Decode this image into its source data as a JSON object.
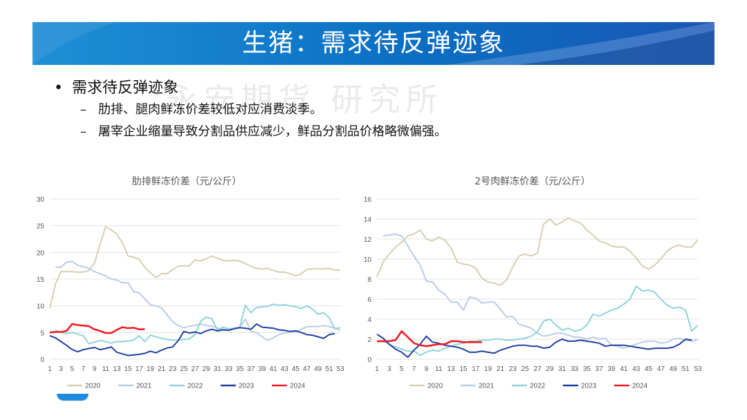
{
  "banner": {
    "title": "生猪：需求待反弹迹象",
    "color": "#0b6fc4"
  },
  "watermark": "永安期货 研究所",
  "bullets": {
    "main": "需求待反弹迹象",
    "subs": [
      "肋排、腿肉鲜冻价差较低对应消费淡季。",
      "屠宰企业缩量导致分割品供应减少，鲜品分割品价格略微偏强。"
    ]
  },
  "chart_data": [
    {
      "type": "line",
      "title": "肋排鲜冻价差（元/公斤）",
      "x": [
        1,
        2,
        3,
        4,
        5,
        6,
        7,
        8,
        9,
        10,
        11,
        12,
        13,
        14,
        15,
        16,
        17,
        18,
        19,
        20,
        21,
        22,
        23,
        24,
        25,
        26,
        27,
        28,
        29,
        30,
        31,
        32,
        33,
        34,
        35,
        36,
        37,
        38,
        39,
        40,
        41,
        42,
        43,
        44,
        45,
        46,
        47,
        48,
        49,
        50,
        51,
        52,
        53
      ],
      "x_tick_labels": [
        "1",
        "3",
        "5",
        "7",
        "9",
        "11",
        "13",
        "15",
        "17",
        "19",
        "21",
        "23",
        "25",
        "27",
        "29",
        "31",
        "33",
        "35",
        "37",
        "39",
        "41",
        "43",
        "45",
        "47",
        "49",
        "51",
        "53"
      ],
      "ylim": [
        0,
        30
      ],
      "y_ticks": [
        0,
        5,
        10,
        15,
        20,
        25,
        30
      ],
      "legend_position": "bottom",
      "series": [
        {
          "name": "2020",
          "color": "#d6cfb2",
          "values": [
            9.5,
            14,
            16.4,
            16.4,
            16.4,
            16.3,
            16.3,
            16.6,
            18,
            21.5,
            24.8,
            24.2,
            23.4,
            21.8,
            19.3,
            19.1,
            18.7,
            17.2,
            16.2,
            15.3,
            16.0,
            16.0,
            16.8,
            17.4,
            17.5,
            17.5,
            18.6,
            18.4,
            18.8,
            19.3,
            18.9,
            18.5,
            18.4,
            18.5,
            18.4,
            17.9,
            17.4,
            17.0,
            16.9,
            17.0,
            16.6,
            16.3,
            16.3,
            16.0,
            15.6,
            16.0,
            16.8,
            16.9,
            16.9,
            16.9,
            17.0,
            16.7,
            16.7
          ]
        },
        {
          "name": "2021",
          "color": "#b9cde6",
          "values": [
            null,
            17.3,
            17.2,
            18.2,
            18.3,
            17.6,
            17.3,
            17.0,
            16.4,
            16.0,
            15.6,
            15.0,
            14.8,
            14.3,
            14.3,
            12.7,
            12.4,
            11.3,
            10.2,
            10.0,
            9.6,
            8.3,
            7.0,
            6.3,
            5.9,
            6.2,
            6.3,
            6.6,
            6.3,
            6.2,
            5.8,
            5.6,
            5.5,
            5.8,
            6.0,
            7.5,
            5.2,
            5.0,
            4.2,
            3.5,
            4.0,
            4.6,
            4.9,
            5.1,
            5.2,
            5.6,
            6.1,
            6.1,
            6.1,
            6.3,
            6.1,
            5.8,
            5.4
          ]
        },
        {
          "name": "2022",
          "color": "#8fd4dc",
          "values": [
            null,
            5.4,
            5.0,
            4.8,
            5.0,
            4.7,
            4.4,
            2.9,
            3.2,
            3.5,
            3.3,
            3.0,
            3.3,
            3.3,
            3.4,
            3.6,
            4.4,
            3.3,
            4.5,
            4.2,
            3.9,
            3.7,
            3.6,
            3.6,
            3.7,
            3.8,
            4.6,
            7.1,
            7.9,
            7.6,
            5.5,
            6.0,
            5.7,
            5.8,
            6.0,
            10.1,
            8.7,
            9.7,
            9.8,
            9.9,
            10.3,
            10.1,
            10.2,
            10.0,
            9.8,
            9.5,
            10.0,
            9.4,
            8.4,
            8.7,
            7.8,
            5.7,
            5.9
          ]
        },
        {
          "name": "2023",
          "color": "#1f3fa3",
          "values": [
            4.4,
            4.0,
            3.3,
            2.6,
            1.8,
            1.4,
            1.8,
            2.0,
            2.2,
            1.8,
            2.0,
            2.3,
            1.3,
            1.0,
            0.7,
            0.8,
            0.9,
            1.1,
            1.5,
            1.2,
            1.7,
            2.1,
            2.3,
            3.5,
            5.2,
            4.9,
            5.1,
            4.8,
            5.3,
            5.6,
            5.3,
            5.5,
            5.4,
            5.7,
            5.9,
            5.8,
            5.6,
            6.6,
            6.0,
            5.9,
            5.8,
            5.5,
            5.4,
            5.2,
            5.3,
            5.0,
            4.6,
            4.5,
            4.2,
            3.9,
            4.6,
            4.8,
            null
          ]
        },
        {
          "name": "2024",
          "color": "#ee1c25",
          "values": [
            5.0,
            5.1,
            5.1,
            5.3,
            6.6,
            6.4,
            6.3,
            6.2,
            5.6,
            5.3,
            4.9,
            4.9,
            5.5,
            6.0,
            5.8,
            5.9,
            5.6,
            5.6,
            null,
            null,
            null,
            null,
            null,
            null,
            null,
            null,
            null,
            null,
            null,
            null,
            null,
            null,
            null,
            null,
            null,
            null,
            null,
            null,
            null,
            null,
            null,
            null,
            null,
            null,
            null,
            null,
            null,
            null,
            null,
            null,
            null,
            null,
            null
          ]
        }
      ]
    },
    {
      "type": "line",
      "title": "2号肉鲜冻价差（元/公斤）",
      "x": [
        1,
        2,
        3,
        4,
        5,
        6,
        7,
        8,
        9,
        10,
        11,
        12,
        13,
        14,
        15,
        16,
        17,
        18,
        19,
        20,
        21,
        22,
        23,
        24,
        25,
        26,
        27,
        28,
        29,
        30,
        31,
        32,
        33,
        34,
        35,
        36,
        37,
        38,
        39,
        40,
        41,
        42,
        43,
        44,
        45,
        46,
        47,
        48,
        49,
        50,
        51,
        52,
        53
      ],
      "x_tick_labels": [
        "1",
        "3",
        "5",
        "7",
        "9",
        "11",
        "13",
        "15",
        "17",
        "19",
        "21",
        "23",
        "25",
        "27",
        "29",
        "31",
        "33",
        "35",
        "37",
        "39",
        "41",
        "43",
        "45",
        "47",
        "49",
        "51",
        "53"
      ],
      "ylim": [
        0,
        16
      ],
      "y_ticks": [
        0,
        2,
        4,
        6,
        8,
        10,
        12,
        14,
        16
      ],
      "legend_position": "bottom",
      "series": [
        {
          "name": "2020",
          "color": "#d6cfb2",
          "values": [
            8.2,
            9.7,
            10.5,
            11.2,
            11.7,
            12.3,
            12.5,
            12.9,
            12.0,
            11.8,
            12.2,
            11.9,
            11.1,
            9.7,
            9.5,
            9.4,
            9.1,
            8.1,
            7.7,
            7.6,
            7.4,
            7.9,
            9.2,
            10.3,
            10.5,
            10.3,
            10.6,
            13.5,
            14.0,
            13.4,
            13.7,
            14.1,
            13.8,
            13.6,
            12.9,
            12.4,
            11.8,
            11.6,
            11.3,
            11.2,
            11.2,
            10.8,
            10.1,
            9.3,
            9.0,
            9.4,
            10.0,
            10.8,
            11.2,
            11.4,
            11.2,
            11.2,
            11.9
          ]
        },
        {
          "name": "2021",
          "color": "#b9cde6",
          "values": [
            null,
            12.3,
            12.4,
            12.5,
            12.3,
            11.3,
            10.3,
            9.4,
            7.8,
            7.7,
            6.9,
            6.5,
            5.7,
            5.7,
            4.9,
            6.2,
            6.1,
            5.6,
            5.7,
            5.7,
            5.0,
            4.2,
            4.3,
            3.5,
            3.3,
            3.1,
            2.6,
            2.3,
            2.4,
            2.6,
            2.6,
            2.4,
            2.2,
            2.2,
            2.0,
            2.2,
            2.0,
            2.1,
            1.4,
            1.3,
            1.1,
            1.3,
            1.5,
            1.7,
            1.8,
            1.8,
            1.6,
            1.7,
            2.0,
            2.1,
            1.9,
            1.8,
            2.0
          ]
        },
        {
          "name": "2022",
          "color": "#8fd4dc",
          "values": [
            null,
            1.8,
            1.5,
            1.2,
            1.0,
            0.8,
            0.8,
            0.4,
            0.7,
            0.9,
            0.8,
            1.1,
            1.3,
            1.5,
            1.6,
            1.8,
            1.8,
            1.9,
            1.9,
            2.0,
            2.0,
            1.9,
            1.9,
            2.0,
            2.1,
            2.3,
            2.7,
            3.8,
            4.0,
            3.4,
            2.9,
            3.1,
            2.8,
            2.9,
            3.4,
            4.5,
            4.3,
            4.6,
            4.9,
            5.1,
            5.5,
            6.0,
            7.3,
            6.8,
            6.9,
            6.7,
            6.0,
            5.4,
            5.1,
            5.2,
            4.9,
            2.8,
            3.4
          ]
        },
        {
          "name": "2023",
          "color": "#1f3fa3",
          "values": [
            2.5,
            2.1,
            1.5,
            1.0,
            0.7,
            0.2,
            0.9,
            1.5,
            2.3,
            1.7,
            1.6,
            1.4,
            1.3,
            1.2,
            1.0,
            0.7,
            0.7,
            0.8,
            0.7,
            0.6,
            0.9,
            1.1,
            1.3,
            1.4,
            1.4,
            1.3,
            1.3,
            1.1,
            1.2,
            1.7,
            2.0,
            1.8,
            1.8,
            1.9,
            1.8,
            1.7,
            1.6,
            1.3,
            1.4,
            1.4,
            1.4,
            1.3,
            1.2,
            1.1,
            1.0,
            1.1,
            1.1,
            1.1,
            1.2,
            1.5,
            2.0,
            1.9,
            null
          ]
        },
        {
          "name": "2024",
          "color": "#ee1c25",
          "values": [
            1.8,
            1.8,
            1.8,
            1.9,
            2.8,
            2.2,
            1.6,
            1.4,
            1.3,
            1.4,
            1.5,
            1.5,
            1.8,
            1.8,
            1.7,
            1.7,
            1.7,
            1.7,
            null,
            null,
            null,
            null,
            null,
            null,
            null,
            null,
            null,
            null,
            null,
            null,
            null,
            null,
            null,
            null,
            null,
            null,
            null,
            null,
            null,
            null,
            null,
            null,
            null,
            null,
            null,
            null,
            null,
            null,
            null,
            null,
            null,
            null,
            null
          ]
        }
      ]
    }
  ]
}
